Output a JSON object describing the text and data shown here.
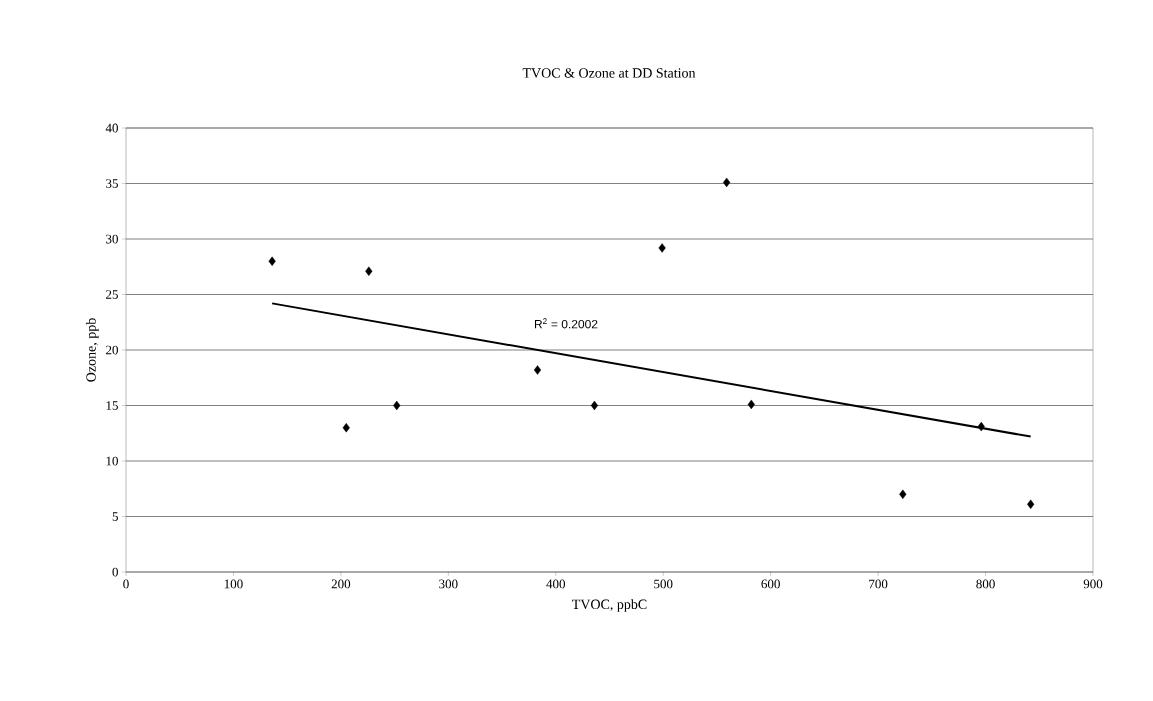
{
  "chart_data": {
    "type": "scatter",
    "title": "TVOC & Ozone at DD Station",
    "xlabel": "TVOC, ppbC",
    "ylabel": "Ozone, ppb",
    "series": [
      {
        "color": "#000000",
        "marker": "diamond",
        "x": [
          136,
          205,
          226,
          252,
          383,
          436,
          499,
          559,
          582,
          723,
          796,
          842
        ],
        "values": [
          28,
          13,
          27.1,
          15,
          18.2,
          15,
          29.2,
          35.1,
          15.1,
          7,
          13.1,
          6.1
        ]
      },
      {
        "type": "line",
        "color": "#000000",
        "marker": "none",
        "x": [
          136,
          842
        ],
        "values": [
          24.2,
          12.2
        ]
      }
    ],
    "annotations": [
      "R$^{2}$ = 0.2002"
    ],
    "xlim": [
      0,
      900
    ],
    "xticks": [
      0,
      100,
      200,
      300,
      400,
      500,
      600,
      700,
      800,
      900
    ],
    "ylim": [
      0,
      40
    ],
    "yticks": [
      0,
      5,
      10,
      15,
      20,
      25,
      30,
      35,
      40
    ],
    "grid": "y"
  }
}
